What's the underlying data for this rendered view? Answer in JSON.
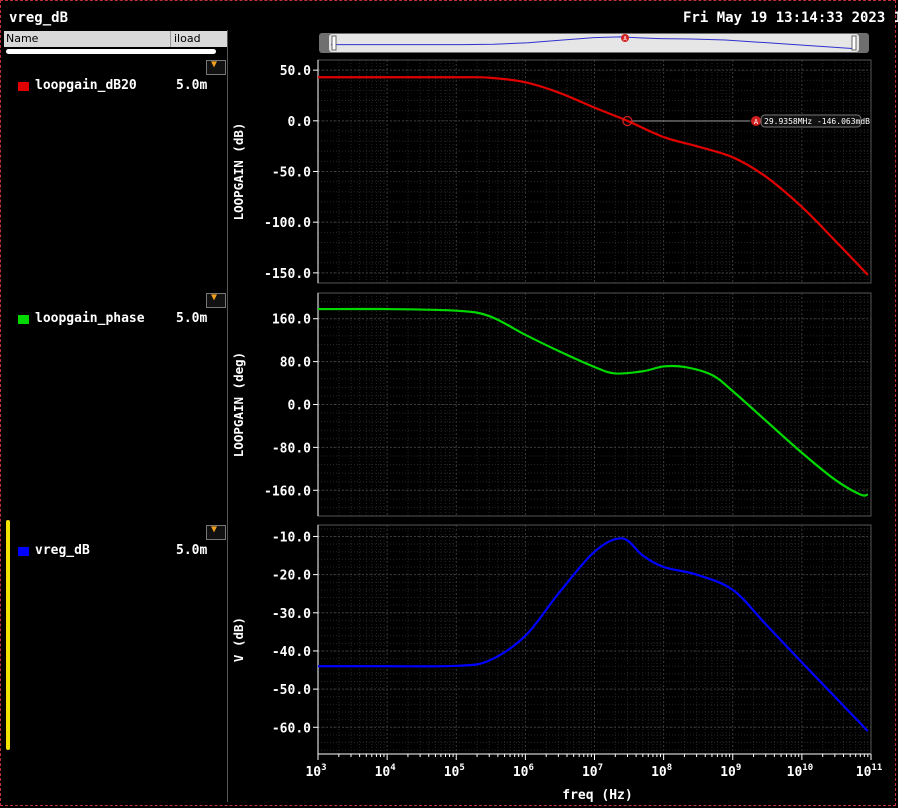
{
  "window": {
    "title": "vreg_dB",
    "datetime": "Fri May 19 13:14:33 2023 1"
  },
  "signal_list": {
    "columns": [
      "Name",
      "iload"
    ],
    "rows": [
      {
        "name": "loopgain_dB20",
        "value": "5.0m",
        "color": "#e00000"
      },
      {
        "name": "loopgain_phase",
        "value": "5.0m",
        "color": "#00d800"
      },
      {
        "name": "vreg_dB",
        "value": "5.0m",
        "color": "#0000ff"
      }
    ]
  },
  "marker": {
    "letter": "A",
    "label": "29.9358MHz -146.063mdB",
    "x": 29935800,
    "y": -0.146
  },
  "colors": {
    "grid": "#3a3a3a",
    "plot_border": "#555555",
    "text": "#ffffff",
    "selection": "#f2e400"
  },
  "chart_data": [
    {
      "type": "line",
      "ylabel": "LOOPGAIN (dB)",
      "xscale": "log",
      "ylim": [
        -160,
        60
      ],
      "yticks": [
        50,
        0,
        -50,
        -100,
        -150
      ],
      "ytick_labels": [
        "50.0",
        "0.0",
        "-50.0",
        "-100.0",
        "-150.0"
      ],
      "grid": true,
      "series": [
        {
          "name": "loopgain_dB20",
          "color": "#e00000",
          "x": [
            1000.0,
            10000.0,
            100000.0,
            300000.0,
            1000000.0,
            3000000.0,
            10000000.0,
            29900000.0,
            100000000.0,
            300000000.0,
            1000000000.0,
            3000000000.0,
            10000000000.0,
            30000000000.0,
            90000000000.0
          ],
          "y": [
            43,
            43,
            43,
            42.5,
            38,
            28,
            13,
            0,
            -16,
            -25,
            -36,
            -55,
            -85,
            -118,
            -152
          ]
        }
      ]
    },
    {
      "type": "line",
      "ylabel": "LOOPGAIN (deg)",
      "xscale": "log",
      "ylim": [
        -208,
        208
      ],
      "yticks": [
        160,
        80,
        0,
        -80,
        -160
      ],
      "ytick_labels": [
        "160.0",
        "80.0",
        "0.0",
        "-80.0",
        "-160.0"
      ],
      "grid": true,
      "series": [
        {
          "name": "loopgain_phase",
          "color": "#00d800",
          "x": [
            1000.0,
            10000.0,
            100000.0,
            300000.0,
            1000000.0,
            3000000.0,
            10000000.0,
            20000000.0,
            50000000.0,
            100000000.0,
            200000000.0,
            500000000.0,
            1000000000.0,
            3000000000.0,
            10000000000.0,
            30000000000.0,
            70000000000.0,
            90000000000.0
          ],
          "y": [
            178,
            178,
            175,
            165,
            130,
            100,
            70,
            58,
            62,
            71,
            70,
            55,
            25,
            -30,
            -90,
            -140,
            -168,
            -168
          ]
        }
      ]
    },
    {
      "type": "line",
      "ylabel": "V (dB)",
      "xlabel": "freq (Hz)",
      "xscale": "log",
      "ylim": [
        -67,
        -7
      ],
      "yticks": [
        -10,
        -20,
        -30,
        -40,
        -50,
        -60
      ],
      "ytick_labels": [
        "-10.0",
        "-20.0",
        "-30.0",
        "-40.0",
        "-50.0",
        "-60.0"
      ],
      "xticks_exp": [
        3,
        4,
        5,
        6,
        7,
        8,
        9,
        10,
        11
      ],
      "grid": true,
      "series": [
        {
          "name": "vreg_dB",
          "color": "#0000ff",
          "x": [
            1000.0,
            10000.0,
            100000.0,
            300000.0,
            1000000.0,
            3000000.0,
            10000000.0,
            25000000.0,
            50000000.0,
            100000000.0,
            300000000.0,
            1000000000.0,
            3000000000.0,
            10000000000.0,
            30000000000.0,
            90000000000.0
          ],
          "y": [
            -44,
            -44,
            -43.9,
            -42.5,
            -36,
            -25,
            -14,
            -10.5,
            -15,
            -18,
            -20,
            -24,
            -33,
            -43,
            -52,
            -61
          ]
        }
      ]
    }
  ]
}
